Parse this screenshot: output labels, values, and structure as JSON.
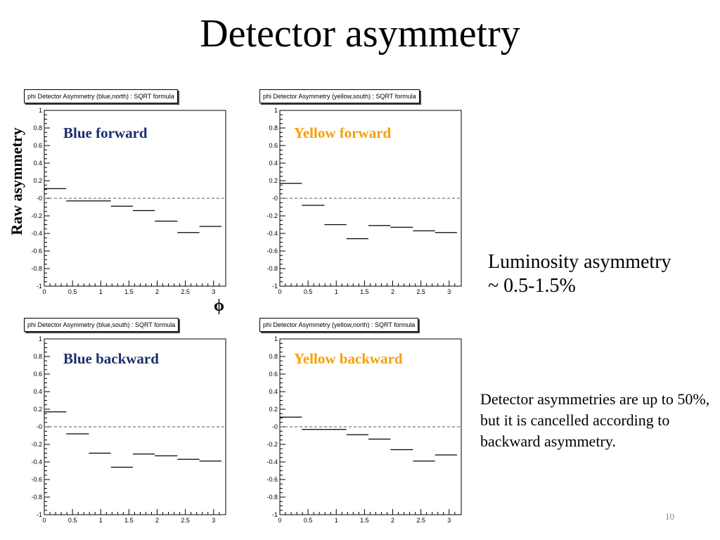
{
  "slide": {
    "title": "Detector asymmetry",
    "ylabel": "Raw asymmetry",
    "xlabel": "ϕ",
    "lum_line1": "Luminosity asymmetry",
    "lum_line2": "~ 0.5-1.5%",
    "note": "Detector asymmetries are up to 50%, but it is cancelled according to backward asymmetry.",
    "page_number": "10"
  },
  "colors": {
    "blue_label": "#1a2f6b",
    "yellow_label": "#f5a000",
    "axis": "#000000",
    "dashed": "#555555"
  },
  "chart_data": [
    {
      "type": "histogram",
      "title": "phi Detector Asymmetry (blue,north) : SQRT formula",
      "label": "Blue forward",
      "label_color": "blue_label",
      "x_edges": [
        0,
        0.39,
        0.79,
        1.18,
        1.57,
        1.96,
        2.36,
        2.75,
        3.14
      ],
      "values": [
        0.11,
        -0.03,
        -0.03,
        -0.09,
        -0.14,
        -0.26,
        -0.39,
        -0.32
      ],
      "xlim": [
        0,
        3.14
      ],
      "ylim": [
        -1,
        1
      ],
      "xticks": [
        0,
        0.5,
        1,
        1.5,
        2,
        2.5,
        3
      ],
      "yticks": [
        1,
        0.8,
        0.6,
        0.4,
        0.2,
        0,
        -0.2,
        -0.4,
        -0.6,
        -0.8,
        -1
      ],
      "ytick_labels": [
        "1",
        "0.8",
        "0.6",
        "0.4",
        "0.2",
        "-0",
        "-0.2",
        "-0.4",
        "-0.6",
        "-0.8",
        "-1"
      ],
      "reference_line": 0
    },
    {
      "type": "histogram",
      "title": "phi Detector Asymmetry (yellow,south) : SQRT formula",
      "label": "Yellow forward",
      "label_color": "yellow_label",
      "x_edges": [
        0,
        0.39,
        0.79,
        1.18,
        1.57,
        1.96,
        2.36,
        2.75,
        3.14
      ],
      "values": [
        0.17,
        -0.08,
        -0.3,
        -0.46,
        -0.31,
        -0.33,
        -0.37,
        -0.39
      ],
      "xlim": [
        0,
        3.14
      ],
      "ylim": [
        -1,
        1
      ],
      "xticks": [
        0,
        0.5,
        1,
        1.5,
        2,
        2.5,
        3
      ],
      "yticks": [
        1,
        0.8,
        0.6,
        0.4,
        0.2,
        0,
        -0.2,
        -0.4,
        -0.6,
        -0.8,
        -1
      ],
      "ytick_labels": [
        "1",
        "0.8",
        "0.6",
        "0.4",
        "0.2",
        "-0",
        "-0.2",
        "-0.4",
        "-0.6",
        "-0.8",
        "-1"
      ],
      "reference_line": 0
    },
    {
      "type": "histogram",
      "title": "phi Detector Asymmetry (blue,south) : SQRT formula",
      "label": "Blue backward",
      "label_color": "blue_label",
      "x_edges": [
        0,
        0.39,
        0.79,
        1.18,
        1.57,
        1.96,
        2.36,
        2.75,
        3.14
      ],
      "values": [
        0.17,
        -0.08,
        -0.3,
        -0.46,
        -0.31,
        -0.33,
        -0.37,
        -0.39
      ],
      "xlim": [
        0,
        3.14
      ],
      "ylim": [
        -1,
        1
      ],
      "xticks": [
        0,
        0.5,
        1,
        1.5,
        2,
        2.5,
        3
      ],
      "yticks": [
        1,
        0.8,
        0.6,
        0.4,
        0.2,
        0,
        -0.2,
        -0.4,
        -0.6,
        -0.8,
        -1
      ],
      "ytick_labels": [
        "1",
        "0.8",
        "0.6",
        "0.4",
        "0.2",
        "-0",
        "-0.2",
        "-0.4",
        "-0.6",
        "-0.8",
        "-1"
      ],
      "reference_line": 0
    },
    {
      "type": "histogram",
      "title": "phi Detector Asymmetry (yellow,north) : SQRT formula",
      "label": "Yellow backward",
      "label_color": "yellow_label",
      "x_edges": [
        0,
        0.39,
        0.79,
        1.18,
        1.57,
        1.96,
        2.36,
        2.75,
        3.14
      ],
      "values": [
        0.11,
        -0.03,
        -0.03,
        -0.09,
        -0.14,
        -0.26,
        -0.39,
        -0.32
      ],
      "xlim": [
        0,
        3.14
      ],
      "ylim": [
        -1,
        1
      ],
      "xticks": [
        0,
        0.5,
        1,
        1.5,
        2,
        2.5,
        3
      ],
      "yticks": [
        1,
        0.8,
        0.6,
        0.4,
        0.2,
        0,
        -0.2,
        -0.4,
        -0.6,
        -0.8,
        -1
      ],
      "ytick_labels": [
        "1",
        "0.8",
        "0.6",
        "0.4",
        "0.2",
        "-0",
        "-0.2",
        "-0.4",
        "-0.6",
        "-0.8",
        "-1"
      ],
      "reference_line": 0
    }
  ]
}
